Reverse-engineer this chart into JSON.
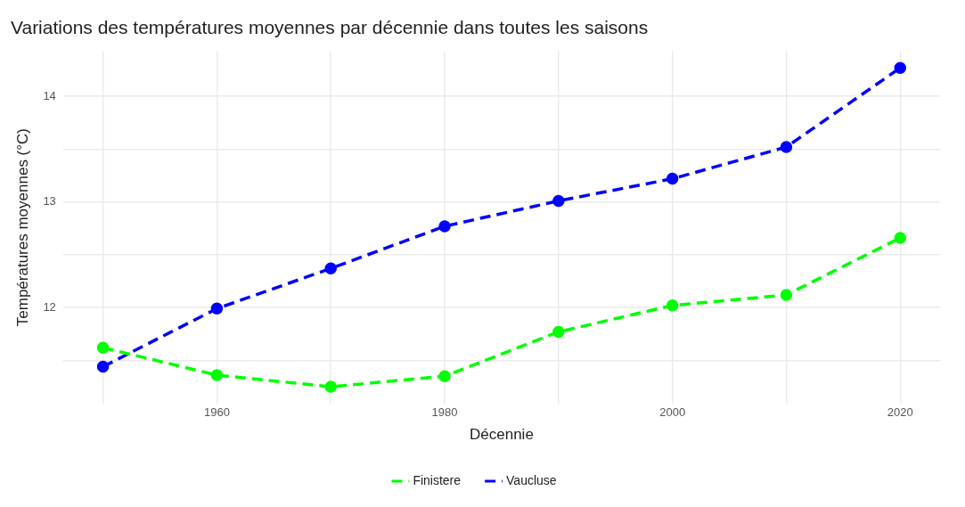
{
  "chart_data": {
    "type": "line",
    "title": "Variations des températures moyennes par décennie dans toutes les saisons",
    "xlabel": "Décennie",
    "ylabel": "Températures moyennes (°C)",
    "x": [
      1950,
      1960,
      1970,
      1980,
      1990,
      2000,
      2010,
      2020
    ],
    "series": [
      {
        "name": "Finistere",
        "color": "#00ff00",
        "values": [
          11.62,
          11.36,
          11.25,
          11.35,
          11.77,
          12.02,
          12.12,
          12.66
        ]
      },
      {
        "name": "Vaucluse",
        "color": "#0000ff",
        "values": [
          11.44,
          11.99,
          12.37,
          12.77,
          13.01,
          13.22,
          13.52,
          14.27
        ]
      }
    ],
    "xlim": [
      1946.5,
      2023.5
    ],
    "ylim": [
      11.09,
      14.43
    ],
    "xticks": [
      {
        "value": 1950,
        "label": null
      },
      1960,
      {
        "value": 1970,
        "label": null
      },
      1980,
      {
        "value": 1990,
        "label": null
      },
      2000,
      {
        "value": 2010,
        "label": null
      },
      2020
    ],
    "yticks": [
      {
        "value": 11.5,
        "label": null
      },
      12,
      {
        "value": 12.5,
        "label": null
      },
      13,
      {
        "value": 13.5,
        "label": null
      },
      14
    ],
    "grid": true,
    "legend": "bottom",
    "marker": "circle",
    "line_style": "dashed"
  }
}
